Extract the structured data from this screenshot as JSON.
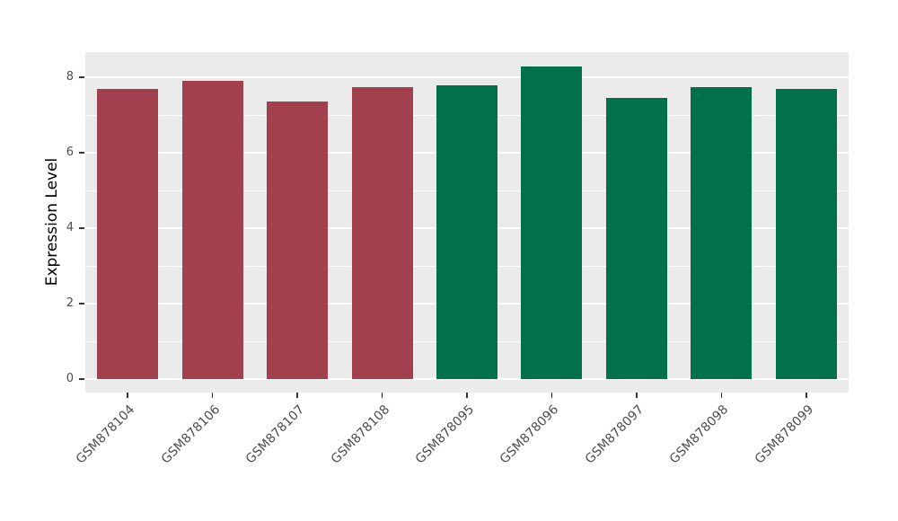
{
  "chart_data": {
    "type": "bar",
    "title": "",
    "xlabel": "",
    "ylabel": "Expression Level",
    "categories": [
      "GSM878104",
      "GSM878106",
      "GSM878107",
      "GSM878108",
      "GSM878095",
      "GSM878096",
      "GSM878097",
      "GSM878098",
      "GSM878099"
    ],
    "values": [
      7.7,
      7.9,
      7.35,
      7.75,
      7.8,
      8.3,
      7.45,
      7.75,
      7.7
    ],
    "bar_colors": [
      "#A3404E",
      "#A3404E",
      "#A3404E",
      "#A3404E",
      "#00714B",
      "#00714B",
      "#00714B",
      "#00714B",
      "#00714B"
    ],
    "groups": {
      "maroon_group": [
        "GSM878104",
        "GSM878106",
        "GSM878107",
        "GSM878108"
      ],
      "green_group": [
        "GSM878095",
        "GSM878096",
        "GSM878097",
        "GSM878098",
        "GSM878099"
      ]
    },
    "ylim": [
      0,
      8.67
    ],
    "yticks": [
      0,
      2,
      4,
      6,
      8
    ],
    "yticks_minor": [
      1,
      3,
      5,
      7
    ],
    "grid": true,
    "legend": "none",
    "panel_background": "#EBEBEB",
    "grid_major_color": "#FFFFFF",
    "grid_minor_color": "#FFFFFF"
  }
}
